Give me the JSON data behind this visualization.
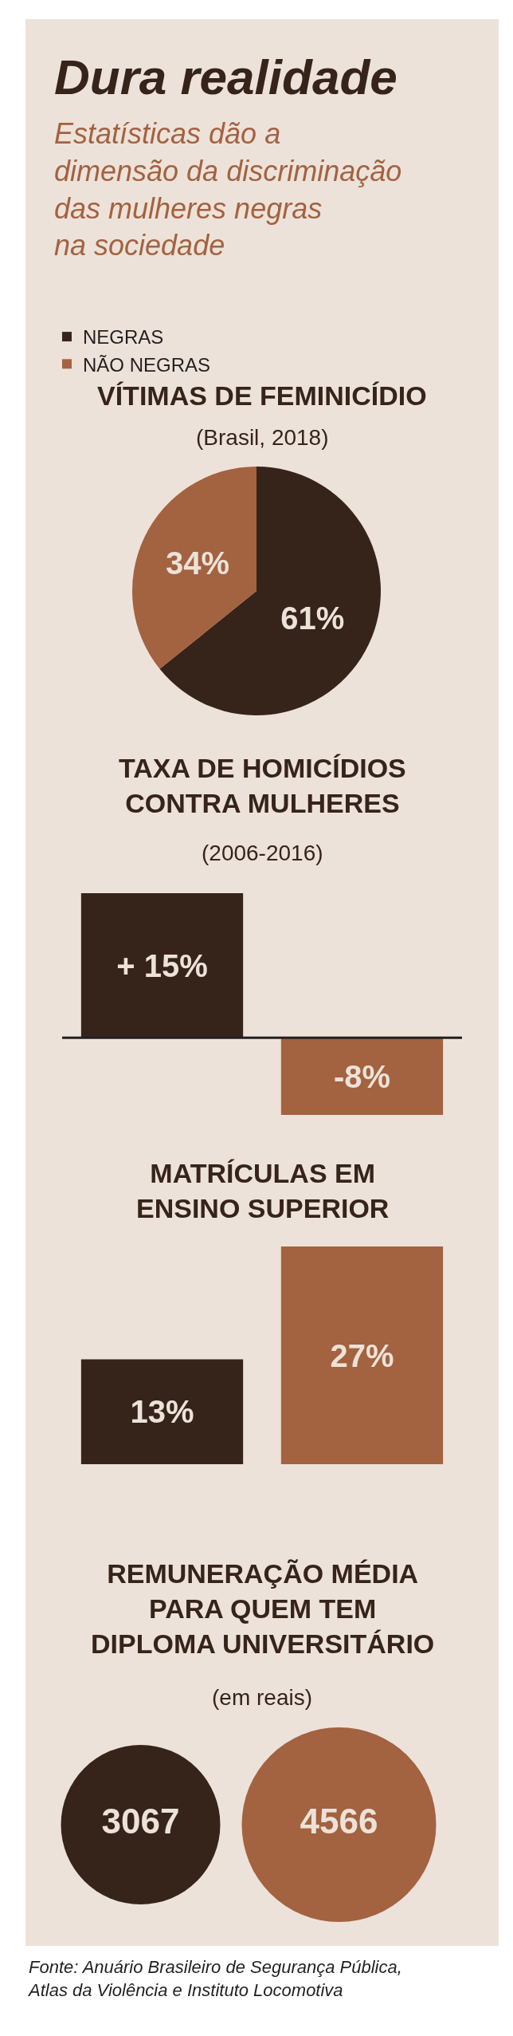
{
  "chart_data": [
    {
      "type": "other",
      "title": "Dura realidade",
      "subtitle": "Estatísticas dão a\ndimensão da discriminação\ndas mulheres negras\nna sociedade"
    },
    {
      "type": "pie",
      "title": "VÍTIMAS DE FEMINICÍDIO",
      "subtitle": "(Brasil, 2018)",
      "categories": [
        "NEGRAS",
        "NÃO NEGRAS"
      ],
      "values": [
        61,
        34
      ],
      "value_labels": [
        "61%",
        "34%"
      ],
      "colors": [
        "#36241a",
        "#a36240"
      ],
      "legend": "top"
    },
    {
      "type": "bar",
      "title": "TAXA DE HOMICÍDIOS\nCONTRA MULHERES",
      "subtitle": "(2006-2016)",
      "categories": [
        null,
        null
      ],
      "values": [
        15,
        -8
      ],
      "value_labels": [
        "+ 15%",
        "-8%"
      ],
      "colors": [
        "#36241a",
        "#a36240"
      ],
      "tick_labels": false,
      "ref_lines": [
        {
          "axis": "y",
          "value": 0,
          "color": "#231f20"
        }
      ]
    },
    {
      "type": "bar",
      "title": "MATRÍCULAS EM\nENSINO SUPERIOR",
      "categories": [
        null,
        null
      ],
      "values": [
        13,
        27
      ],
      "value_labels": [
        "13%",
        "27%"
      ],
      "colors": [
        "#36241a",
        "#a36240"
      ],
      "tick_labels": false
    },
    {
      "type": "other",
      "title": "REMUNERAÇÃO MÉDIA\nPARA QUEM TEM\nDIPLOMA UNIVERSITÁRIO",
      "subtitle": "(em reais)",
      "categories": [
        null,
        null
      ],
      "values": [
        3067,
        4566
      ],
      "data_labels": true,
      "colors": [
        "#36241a",
        "#a36240"
      ],
      "annotations": [
        "Fonte: Anuário Brasileiro de Segurança Pública,\nAtlas da Violência e Instituto Locomotiva"
      ]
    }
  ]
}
